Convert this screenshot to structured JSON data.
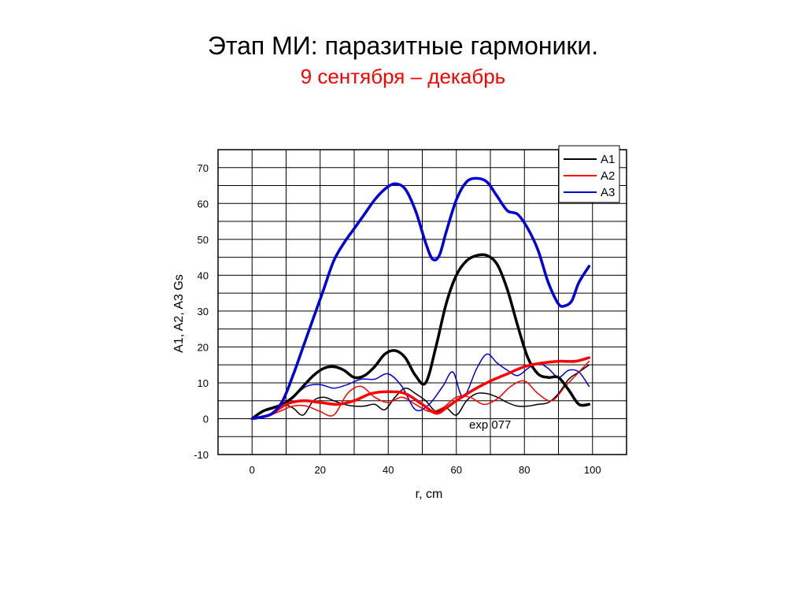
{
  "slide": {
    "title": "Этап МИ: паразитные гармоники.",
    "subtitle": "9 сентября – декабрь",
    "subtitle_color": "#ff0000"
  },
  "chart_data": {
    "type": "line",
    "xlabel": "r, cm",
    "ylabel": "A1, A2, A3 Gs",
    "xlim": [
      -10,
      110
    ],
    "ylim": [
      -10,
      75
    ],
    "xticks": [
      0,
      20,
      40,
      60,
      80,
      100
    ],
    "yticks": [
      -10,
      0,
      10,
      20,
      30,
      40,
      50,
      60,
      70
    ],
    "grid": true,
    "legend_position": "top-right",
    "legend": [
      "A1",
      "A2",
      "A3"
    ],
    "annotation": "exp 077",
    "series": [
      {
        "name": "A1",
        "style": "thick",
        "color": "#000000",
        "x": [
          0,
          3,
          6,
          9,
          12,
          15,
          18,
          21,
          24,
          27,
          30,
          33,
          36,
          39,
          42,
          45,
          48,
          51,
          54,
          57,
          60,
          63,
          66,
          69,
          72,
          75,
          78,
          81,
          84,
          87,
          90,
          93,
          96,
          99
        ],
        "y": [
          0,
          2,
          3,
          4,
          6,
          9,
          12,
          14,
          14.5,
          13.5,
          11.5,
          12,
          14.5,
          18,
          19,
          17,
          12,
          10,
          20,
          32,
          40,
          44,
          45.5,
          45.5,
          43,
          36,
          26,
          17,
          12.5,
          11.5,
          11.5,
          8,
          4,
          4
        ]
      },
      {
        "name": "A2",
        "style": "thick",
        "color": "#ff0000",
        "x": [
          0,
          5,
          10,
          15,
          20,
          25,
          30,
          35,
          40,
          45,
          50,
          54,
          57,
          60,
          65,
          70,
          75,
          80,
          85,
          90,
          95,
          99
        ],
        "y": [
          0,
          1,
          4,
          5,
          4.5,
          4,
          5,
          7,
          7.5,
          7,
          4,
          1.5,
          3,
          5,
          8,
          10.5,
          12.5,
          14.5,
          15.5,
          16,
          16,
          17
        ]
      },
      {
        "name": "A3",
        "style": "thick",
        "color": "#0000dd",
        "x": [
          0,
          3,
          6,
          9,
          12,
          15,
          18,
          21,
          24,
          27,
          30,
          33,
          36,
          39,
          42,
          45,
          48,
          51,
          53,
          55,
          57,
          60,
          63,
          66,
          69,
          72,
          75,
          78,
          81,
          84,
          87,
          90,
          92,
          94,
          96,
          99
        ],
        "y": [
          0,
          0.5,
          1.5,
          5,
          12,
          20,
          28,
          36,
          44,
          49,
          53,
          57,
          61,
          64,
          65.5,
          64,
          58,
          49,
          44.5,
          45.5,
          52,
          61,
          66,
          67,
          66,
          62,
          58,
          57,
          53,
          47,
          38,
          32,
          31.5,
          33,
          38,
          42.5
        ]
      },
      {
        "name": "A1",
        "style": "thin",
        "color": "#000000",
        "x": [
          0,
          3,
          6,
          9,
          12,
          15,
          18,
          21,
          24,
          27,
          30,
          33,
          36,
          39,
          42,
          45,
          48,
          51,
          54,
          57,
          60,
          63,
          66,
          69,
          72,
          75,
          78,
          81,
          84,
          87,
          90,
          93,
          96,
          99
        ],
        "y": [
          0,
          2,
          3,
          4,
          3,
          1,
          5,
          6,
          5,
          4,
          3.5,
          3.5,
          4,
          2.5,
          6,
          8.5,
          7,
          5,
          2,
          3,
          1,
          5,
          7,
          7,
          6,
          4.5,
          3.5,
          3.5,
          4,
          4.5,
          7,
          11,
          13,
          15
        ]
      },
      {
        "name": "A2",
        "style": "thin",
        "color": "#ff0000",
        "x": [
          0,
          4,
          8,
          12,
          16,
          20,
          24,
          28,
          32,
          36,
          40,
          44,
          48,
          52,
          56,
          60,
          64,
          68,
          72,
          76,
          80,
          84,
          88,
          92,
          96,
          99
        ],
        "y": [
          0,
          0.5,
          2,
          3.5,
          3.5,
          2,
          1,
          7,
          9,
          6,
          4.5,
          6,
          4,
          2,
          3,
          6,
          6,
          4,
          5.5,
          9,
          10.5,
          7,
          5,
          9,
          13,
          16
        ]
      },
      {
        "name": "A3",
        "style": "thin",
        "color": "#0000dd",
        "x": [
          0,
          4,
          8,
          12,
          16,
          20,
          24,
          28,
          32,
          36,
          40,
          44,
          48,
          52,
          56,
          59,
          62,
          66,
          69,
          72,
          75,
          78,
          81,
          84,
          87,
          90,
          93,
          96,
          99
        ],
        "y": [
          0,
          0.5,
          3,
          6,
          9,
          9.5,
          8.5,
          9.5,
          11,
          11,
          12.5,
          9,
          2.5,
          4,
          9,
          13,
          6,
          14,
          18,
          15.5,
          13.5,
          12,
          14,
          15.5,
          14,
          11.5,
          13.5,
          13,
          9
        ]
      }
    ]
  }
}
